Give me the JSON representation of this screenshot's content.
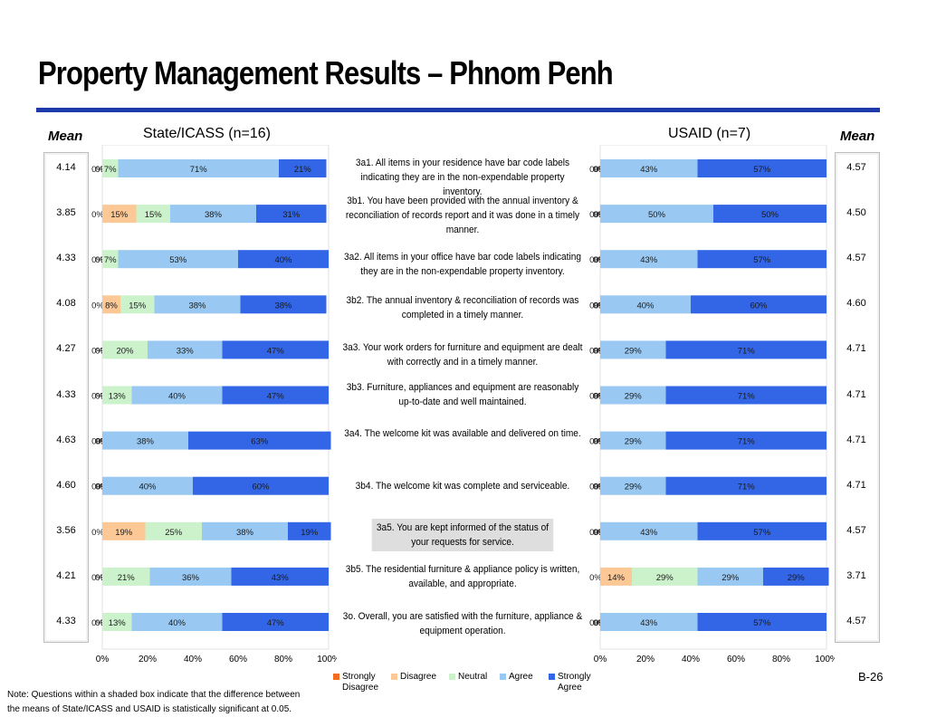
{
  "title": "Property Management Results – Phnom Penh",
  "headers": {
    "left_mean": "Mean",
    "left_panel": "State/ICASS (n=16)",
    "right_panel": "USAID (n=7)",
    "right_mean": "Mean"
  },
  "axis_ticks": [
    "0%",
    "20%",
    "40%",
    "60%",
    "80%",
    "100%"
  ],
  "colors": {
    "strongly_disagree": "#f26d22",
    "disagree": "#fcc896",
    "neutral": "#ccf2cc",
    "agree": "#99c9f2",
    "strongly_agree": "#3366e6"
  },
  "legend": [
    {
      "key": "strongly_disagree",
      "label": "Strongly Disagree"
    },
    {
      "key": "disagree",
      "label": "Disagree"
    },
    {
      "key": "neutral",
      "label": "Neutral"
    },
    {
      "key": "agree",
      "label": "Agree"
    },
    {
      "key": "strongly_agree",
      "label": "Strongly Agree"
    }
  ],
  "questions": [
    {
      "text": "3a1. All items in your residence have bar code labels indicating they are in the non-expendable property inventory.",
      "shaded": false
    },
    {
      "text": "3b1. You have been provided with the annual inventory & reconciliation of records report and it was done in a timely manner.",
      "shaded": false
    },
    {
      "text": "3a2. All items in your office have bar code labels indicating they are in the non-expendable property inventory.",
      "shaded": false
    },
    {
      "text": "3b2. The annual inventory & reconciliation of records was completed in a timely manner.",
      "shaded": false
    },
    {
      "text": "3a3. Your work orders for furniture and equipment are dealt with correctly and in a timely manner.",
      "shaded": false
    },
    {
      "text": "3b3. Furniture, appliances and equipment are reasonably up-to-date and well maintained.",
      "shaded": false
    },
    {
      "text": "3a4. The welcome kit was available and delivered on time.",
      "shaded": false
    },
    {
      "text": "3b4. The welcome kit was complete and serviceable.",
      "shaded": false
    },
    {
      "text": "3a5. You are kept informed of the status of your requests for service.",
      "shaded": true
    },
    {
      "text": "3b5. The residential furniture & appliance policy is written, available, and appropriate.",
      "shaded": false
    },
    {
      "text": "3o. Overall, you are satisfied with the furniture, appliance & equipment operation.",
      "shaded": false
    }
  ],
  "chart_data": [
    {
      "type": "bar",
      "stacked": true,
      "orientation": "horizontal",
      "title": "State/ICASS (n=16)",
      "xlim": [
        0,
        100
      ],
      "series_order": [
        "Strongly Disagree",
        "Disagree",
        "Neutral",
        "Agree",
        "Strongly Agree"
      ],
      "means": [
        "4.14",
        "3.85",
        "4.33",
        "4.08",
        "4.27",
        "4.33",
        "4.63",
        "4.60",
        "3.56",
        "4.21",
        "4.33"
      ],
      "rows": [
        {
          "values": [
            0,
            0,
            7,
            71,
            21
          ],
          "labels": [
            "0%",
            "0%",
            "7%",
            "71%",
            "21%"
          ]
        },
        {
          "values": [
            0,
            15,
            15,
            38,
            31
          ],
          "labels": [
            "0%",
            "15%",
            "15%",
            "38%",
            "31%"
          ]
        },
        {
          "values": [
            0,
            0,
            7,
            53,
            40
          ],
          "labels": [
            "0%",
            "0%",
            "7%",
            "53%",
            "40%"
          ]
        },
        {
          "values": [
            0,
            8,
            15,
            38,
            38
          ],
          "labels": [
            "0%",
            "8%",
            "15%",
            "38%",
            "38%"
          ]
        },
        {
          "values": [
            0,
            0,
            20,
            33,
            47
          ],
          "labels": [
            "0%",
            "0%",
            "20%",
            "33%",
            "47%"
          ]
        },
        {
          "values": [
            0,
            0,
            13,
            40,
            47
          ],
          "labels": [
            "0%",
            "0%",
            "13%",
            "40%",
            "47%"
          ]
        },
        {
          "values": [
            0,
            0,
            0,
            38,
            63
          ],
          "labels": [
            "0%",
            "0%",
            "0%",
            "38%",
            "63%"
          ]
        },
        {
          "values": [
            0,
            0,
            0,
            40,
            60
          ],
          "labels": [
            "0%",
            "0%",
            "0%",
            "40%",
            "60%"
          ]
        },
        {
          "values": [
            0,
            19,
            25,
            38,
            19
          ],
          "labels": [
            "0%",
            "19%",
            "25%",
            "38%",
            "19%"
          ]
        },
        {
          "values": [
            0,
            0,
            21,
            36,
            43
          ],
          "labels": [
            "0%",
            "0%",
            "21%",
            "36%",
            "43%"
          ]
        },
        {
          "values": [
            0,
            0,
            13,
            40,
            47
          ],
          "labels": [
            "0%",
            "0%",
            "13%",
            "40%",
            "47%"
          ]
        }
      ]
    },
    {
      "type": "bar",
      "stacked": true,
      "orientation": "horizontal",
      "title": "USAID (n=7)",
      "xlim": [
        0,
        100
      ],
      "series_order": [
        "Strongly Disagree",
        "Disagree",
        "Neutral",
        "Agree",
        "Strongly Agree"
      ],
      "means": [
        "4.57",
        "4.50",
        "4.57",
        "4.60",
        "4.71",
        "4.71",
        "4.71",
        "4.71",
        "4.57",
        "3.71",
        "4.57"
      ],
      "rows": [
        {
          "values": [
            0,
            0,
            0,
            43,
            57
          ],
          "labels": [
            "0%",
            "0%",
            "0%",
            "43%",
            "57%"
          ]
        },
        {
          "values": [
            0,
            0,
            0,
            50,
            50
          ],
          "labels": [
            "0%",
            "0%",
            "0%",
            "50%",
            "50%"
          ]
        },
        {
          "values": [
            0,
            0,
            0,
            43,
            57
          ],
          "labels": [
            "0%",
            "0%",
            "0%",
            "43%",
            "57%"
          ]
        },
        {
          "values": [
            0,
            0,
            0,
            40,
            60
          ],
          "labels": [
            "0%",
            "0%",
            "0%",
            "40%",
            "60%"
          ]
        },
        {
          "values": [
            0,
            0,
            0,
            29,
            71
          ],
          "labels": [
            "0%",
            "0%",
            "0%",
            "29%",
            "71%"
          ]
        },
        {
          "values": [
            0,
            0,
            0,
            29,
            71
          ],
          "labels": [
            "0%",
            "0%",
            "0%",
            "29%",
            "71%"
          ]
        },
        {
          "values": [
            0,
            0,
            0,
            29,
            71
          ],
          "labels": [
            "0%",
            "0%",
            "0%",
            "29%",
            "71%"
          ]
        },
        {
          "values": [
            0,
            0,
            0,
            29,
            71
          ],
          "labels": [
            "0%",
            "0%",
            "0%",
            "29%",
            "71%"
          ]
        },
        {
          "values": [
            0,
            0,
            0,
            43,
            57
          ],
          "labels": [
            "0%",
            "0%",
            "0%",
            "43%",
            "57%"
          ]
        },
        {
          "values": [
            0,
            14,
            29,
            29,
            29
          ],
          "labels": [
            "0%",
            "14%",
            "29%",
            "29%",
            "29%"
          ]
        },
        {
          "values": [
            0,
            0,
            0,
            43,
            57
          ],
          "labels": [
            "0%",
            "0%",
            "0%",
            "43%",
            "57%"
          ]
        }
      ]
    }
  ],
  "note": "Note: Questions within a shaded box indicate that the difference between the means of State/ICASS and USAID is statistically significant at 0.05.",
  "page_number": "B-26"
}
